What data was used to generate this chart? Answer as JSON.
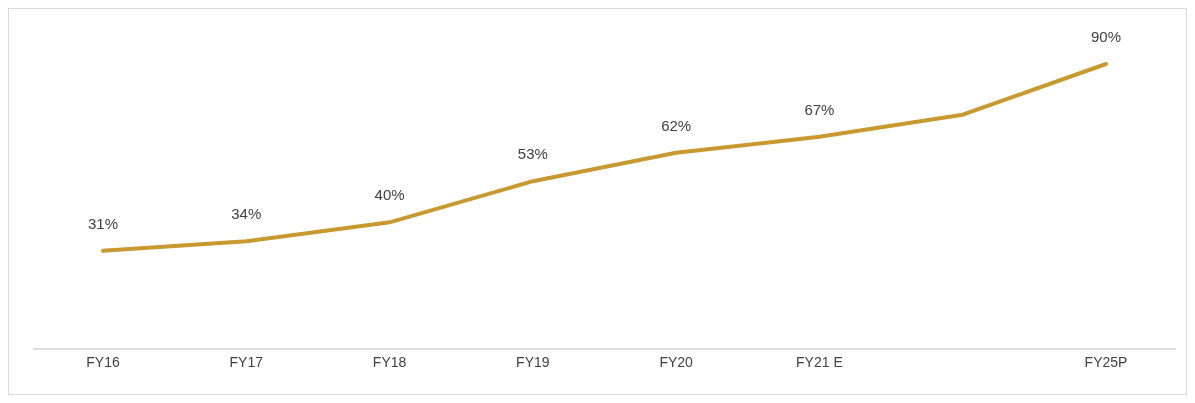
{
  "chart_data": {
    "type": "line",
    "categories": [
      "FY16",
      "FY17",
      "FY18",
      "FY19",
      "FY20",
      "FY21 E",
      null,
      "FY25P"
    ],
    "values": [
      31,
      34,
      40,
      53,
      62,
      67,
      74,
      90
    ],
    "value_labels": [
      "31%",
      "34%",
      "40%",
      "53%",
      "62%",
      "67%",
      null,
      "90%"
    ],
    "color": "#c8992f",
    "marker": "none",
    "line_style": "solid"
  }
}
